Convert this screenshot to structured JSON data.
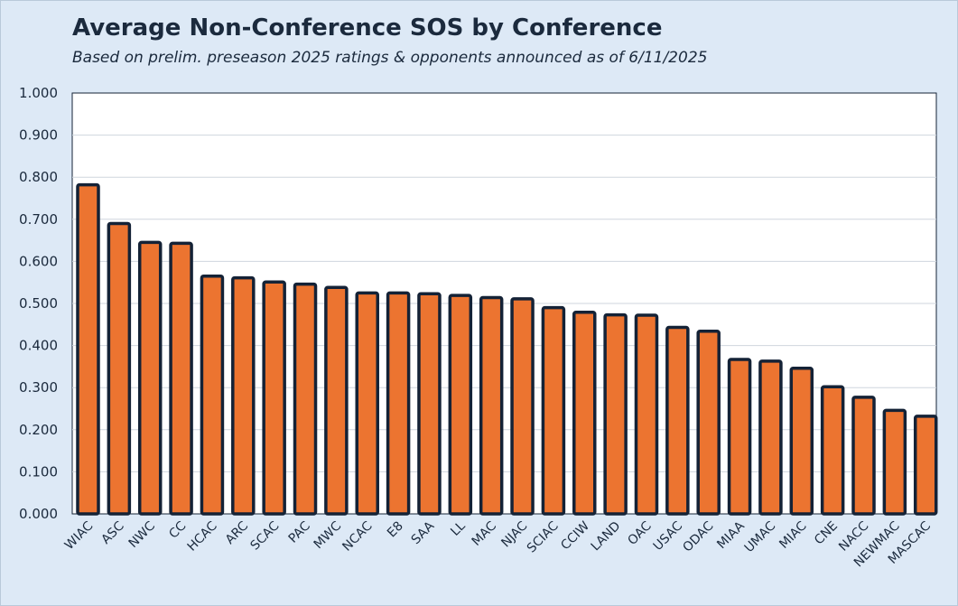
{
  "chart_data": {
    "type": "bar",
    "title": "Average Non-Conference SOS by Conference",
    "subtitle": "Based on prelim. preseason 2025 ratings & opponents announced as of 6/11/2025",
    "xlabel": "",
    "ylabel": "",
    "ylim": [
      0,
      1
    ],
    "yticks": [
      "0.000",
      "0.100",
      "0.200",
      "0.300",
      "0.400",
      "0.500",
      "0.600",
      "0.700",
      "0.800",
      "0.900",
      "1.000"
    ],
    "grid": true,
    "categories": [
      "WIAC",
      "ASC",
      "NWC",
      "CC",
      "HCAC",
      "ARC",
      "SCAC",
      "PAC",
      "MWC",
      "NCAC",
      "E8",
      "SAA",
      "LL",
      "MAC",
      "NJAC",
      "SCIAC",
      "CCIW",
      "LAND",
      "OAC",
      "USAC",
      "ODAC",
      "MIAA",
      "UMAC",
      "MIAC",
      "CNE",
      "NACC",
      "NEWMAC",
      "MASCAC"
    ],
    "values": [
      0.782,
      0.69,
      0.645,
      0.643,
      0.565,
      0.561,
      0.551,
      0.546,
      0.538,
      0.525,
      0.525,
      0.523,
      0.519,
      0.514,
      0.511,
      0.49,
      0.479,
      0.473,
      0.472,
      0.443,
      0.434,
      0.367,
      0.363,
      0.346,
      0.302,
      0.277,
      0.246,
      0.232
    ],
    "colors": {
      "bar_fill": "#ec7430",
      "bar_stroke": "#142236",
      "background": "#dde9f6",
      "plot_bg": "#ffffff",
      "grid": "#cfd6de"
    }
  }
}
